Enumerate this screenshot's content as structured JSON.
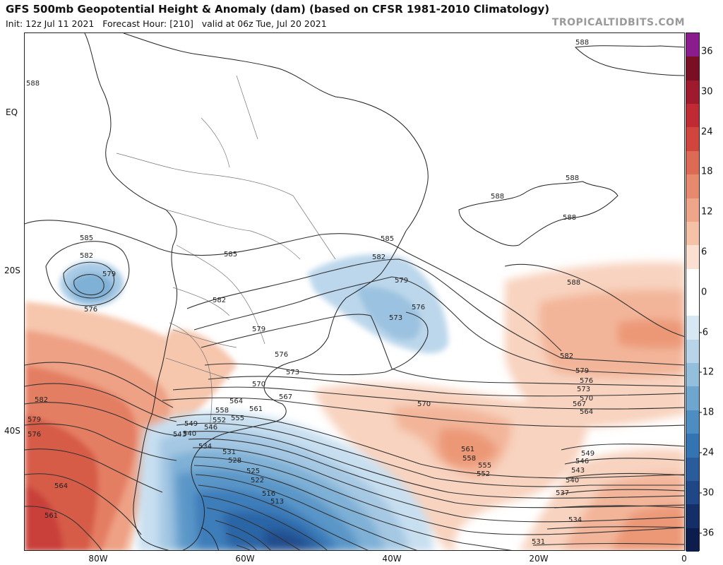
{
  "header": {
    "title": "GFS 500mb Geopotential Height & Anomaly (dam) (based on CFSR 1981-2010 Climatology)",
    "subtitle": "Init: 12z Jul 11 2021   Forecast Hour: [210]   valid at 06z Tue, Jul 20 2021",
    "brand": "TROPICALTIDBITS.COM"
  },
  "axes": {
    "lat_labels": [
      "EQ",
      "20S",
      "40S"
    ],
    "lon_labels": [
      "80W",
      "60W",
      "40W",
      "20W",
      "0"
    ]
  },
  "colorbar": {
    "ticks": [
      "36",
      "30",
      "24",
      "18",
      "12",
      "6",
      "0",
      "-6",
      "-12",
      "-18",
      "-24",
      "-30",
      "-36"
    ],
    "colors": [
      "#8b1c8f",
      "#7a0f24",
      "#9e1a2c",
      "#bf2a33",
      "#d0463f",
      "#dc6a55",
      "#e7896f",
      "#efa58a",
      "#f5c2a8",
      "#fbe0d2",
      "#ffffff",
      "#ffffff",
      "#d8e8f3",
      "#b7d4e8",
      "#93bedc",
      "#6ea6cf",
      "#4d8dc2",
      "#3574b3",
      "#2a5c9c",
      "#1f4686",
      "#142f68",
      "#0c1d4d"
    ]
  },
  "contour_labels": {
    "north_588": [
      "588",
      "588",
      "588",
      "588",
      "588"
    ],
    "subtropical": [
      "585",
      "582",
      "579",
      "576",
      "585",
      "582",
      "585",
      "582",
      "579",
      "576",
      "573",
      "579",
      "576",
      "573",
      "570",
      "567"
    ],
    "east": [
      "588",
      "582",
      "579",
      "576",
      "573",
      "570",
      "567",
      "564",
      "570"
    ],
    "west": [
      "582",
      "579",
      "576",
      "564",
      "561"
    ],
    "trough": [
      "564",
      "561",
      "558",
      "555",
      "552",
      "549",
      "546",
      "543",
      "540",
      "534",
      "531",
      "528",
      "525",
      "522",
      "516",
      "513"
    ],
    "mid_atlantic": [
      "561",
      "558",
      "555",
      "552"
    ],
    "southeast": [
      "549",
      "546",
      "543",
      "540",
      "537",
      "534",
      "531"
    ]
  },
  "anomaly_regions": [
    {
      "sign": "positive",
      "area": "southeast Pacific off Chile",
      "max_dam": 18
    },
    {
      "sign": "negative",
      "area": "southwest Pacific closed low",
      "min_dam": -12
    },
    {
      "sign": "negative",
      "area": "southeast Brazil coast",
      "min_dam": -12
    },
    {
      "sign": "negative",
      "area": "Patagonia / Argentine Sea trough",
      "min_dam": -30
    },
    {
      "sign": "positive",
      "area": "South Atlantic ridge",
      "max_dam": 12
    }
  ]
}
